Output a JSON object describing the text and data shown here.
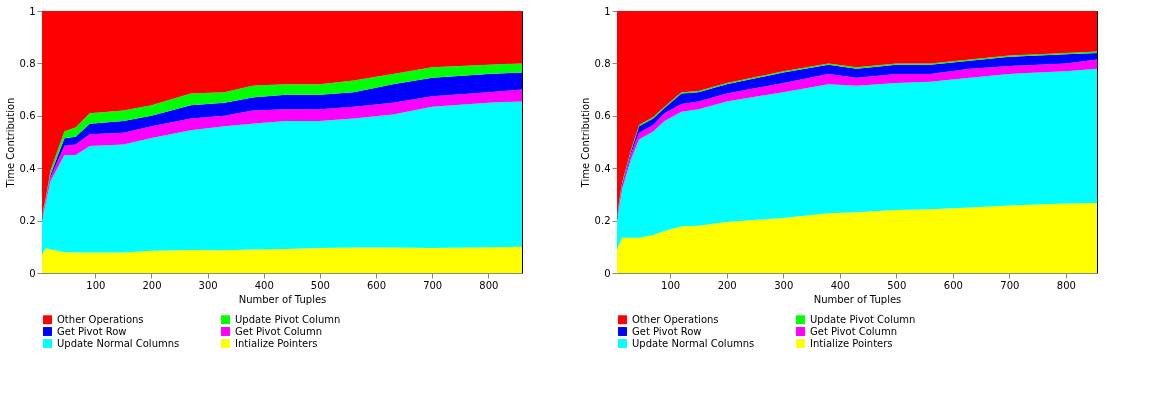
{
  "chart_data": [
    {
      "type": "area",
      "stacked": true,
      "xlabel": "Number of Tuples",
      "ylabel": "Time Contribution",
      "xlim": [
        5,
        860
      ],
      "xticks": [
        100,
        200,
        300,
        400,
        500,
        600,
        700,
        800
      ],
      "ylim": [
        0,
        1
      ],
      "yticks": [
        0,
        0.2,
        0.4,
        0.6,
        0.8,
        1
      ],
      "grid": false,
      "legend": "bottom",
      "x": [
        5,
        12,
        20,
        45,
        65,
        90,
        150,
        200,
        270,
        330,
        380,
        440,
        500,
        560,
        630,
        700,
        800,
        860
      ],
      "series": [
        {
          "name": "Intialize Pointers",
          "color": "#ffff00",
          "values": [
            0.07,
            0.095,
            0.09,
            0.08,
            0.078,
            0.078,
            0.078,
            0.085,
            0.088,
            0.087,
            0.09,
            0.092,
            0.095,
            0.097,
            0.097,
            0.095,
            0.098,
            0.1
          ]
        },
        {
          "name": "Update Normal Columns",
          "color": "#00ffff",
          "values": [
            0.13,
            0.175,
            0.26,
            0.37,
            0.372,
            0.407,
            0.412,
            0.43,
            0.457,
            0.473,
            0.48,
            0.488,
            0.485,
            0.493,
            0.508,
            0.54,
            0.552,
            0.555
          ]
        },
        {
          "name": "Get Pivot Column",
          "color": "#ff00ff",
          "values": [
            0.01,
            0.01,
            0.015,
            0.036,
            0.04,
            0.045,
            0.045,
            0.045,
            0.045,
            0.04,
            0.05,
            0.045,
            0.045,
            0.045,
            0.045,
            0.04,
            0.04,
            0.045
          ]
        },
        {
          "name": "Get Pivot Row",
          "color": "#0000ff",
          "values": [
            0.005,
            0.005,
            0.01,
            0.028,
            0.03,
            0.04,
            0.045,
            0.04,
            0.05,
            0.05,
            0.05,
            0.055,
            0.055,
            0.055,
            0.07,
            0.07,
            0.07,
            0.065
          ]
        },
        {
          "name": "Update Pivot Column",
          "color": "#00ff00",
          "values": [
            0.005,
            0.005,
            0.015,
            0.027,
            0.035,
            0.04,
            0.04,
            0.04,
            0.045,
            0.04,
            0.045,
            0.04,
            0.04,
            0.045,
            0.04,
            0.04,
            0.035,
            0.035
          ]
        },
        {
          "name": "Other Operations",
          "color": "#ff0000",
          "values": [
            0.78,
            0.71,
            0.61,
            0.459,
            0.445,
            0.39,
            0.38,
            0.36,
            0.315,
            0.31,
            0.285,
            0.28,
            0.28,
            0.265,
            0.24,
            0.215,
            0.205,
            0.2
          ]
        }
      ]
    },
    {
      "type": "area",
      "stacked": true,
      "xlabel": "Number of Tuples",
      "ylabel": "Time Contribution",
      "xlim": [
        6,
        855
      ],
      "xticks": [
        100,
        200,
        300,
        400,
        500,
        600,
        700,
        800
      ],
      "ylim": [
        0,
        1
      ],
      "yticks": [
        0,
        0.2,
        0.4,
        0.6,
        0.8,
        1
      ],
      "grid": false,
      "legend": "bottom",
      "x": [
        6,
        15,
        30,
        45,
        70,
        90,
        120,
        150,
        200,
        300,
        380,
        430,
        500,
        560,
        630,
        700,
        800,
        855
      ],
      "series": [
        {
          "name": "Intialize Pointers",
          "color": "#ffff00",
          "values": [
            0.09,
            0.135,
            0.135,
            0.135,
            0.145,
            0.16,
            0.178,
            0.18,
            0.195,
            0.21,
            0.228,
            0.232,
            0.24,
            0.243,
            0.25,
            0.258,
            0.265,
            0.267
          ]
        },
        {
          "name": "Update Normal Columns",
          "color": "#00ffff",
          "values": [
            0.11,
            0.185,
            0.295,
            0.375,
            0.395,
            0.42,
            0.437,
            0.445,
            0.46,
            0.48,
            0.492,
            0.483,
            0.485,
            0.487,
            0.495,
            0.502,
            0.505,
            0.513
          ]
        },
        {
          "name": "Get Pivot Column",
          "color": "#ff00ff",
          "values": [
            0.01,
            0.01,
            0.02,
            0.025,
            0.025,
            0.03,
            0.03,
            0.03,
            0.03,
            0.035,
            0.04,
            0.03,
            0.035,
            0.03,
            0.035,
            0.03,
            0.03,
            0.035
          ]
        },
        {
          "name": "Get Pivot Row",
          "color": "#0000ff",
          "values": [
            0.005,
            0.01,
            0.01,
            0.025,
            0.025,
            0.02,
            0.04,
            0.035,
            0.035,
            0.04,
            0.035,
            0.035,
            0.035,
            0.035,
            0.03,
            0.035,
            0.035,
            0.025
          ]
        },
        {
          "name": "Update Pivot Column",
          "color": "#00ff00",
          "values": [
            0.005,
            0.005,
            0.005,
            0.005,
            0.005,
            0.005,
            0.005,
            0.005,
            0.005,
            0.005,
            0.005,
            0.005,
            0.005,
            0.005,
            0.005,
            0.005,
            0.005,
            0.005
          ]
        },
        {
          "name": "Other Operations",
          "color": "#ff0000",
          "values": [
            0.78,
            0.655,
            0.535,
            0.435,
            0.405,
            0.365,
            0.31,
            0.305,
            0.275,
            0.23,
            0.2,
            0.215,
            0.2,
            0.2,
            0.185,
            0.17,
            0.16,
            0.155
          ]
        }
      ]
    }
  ]
}
